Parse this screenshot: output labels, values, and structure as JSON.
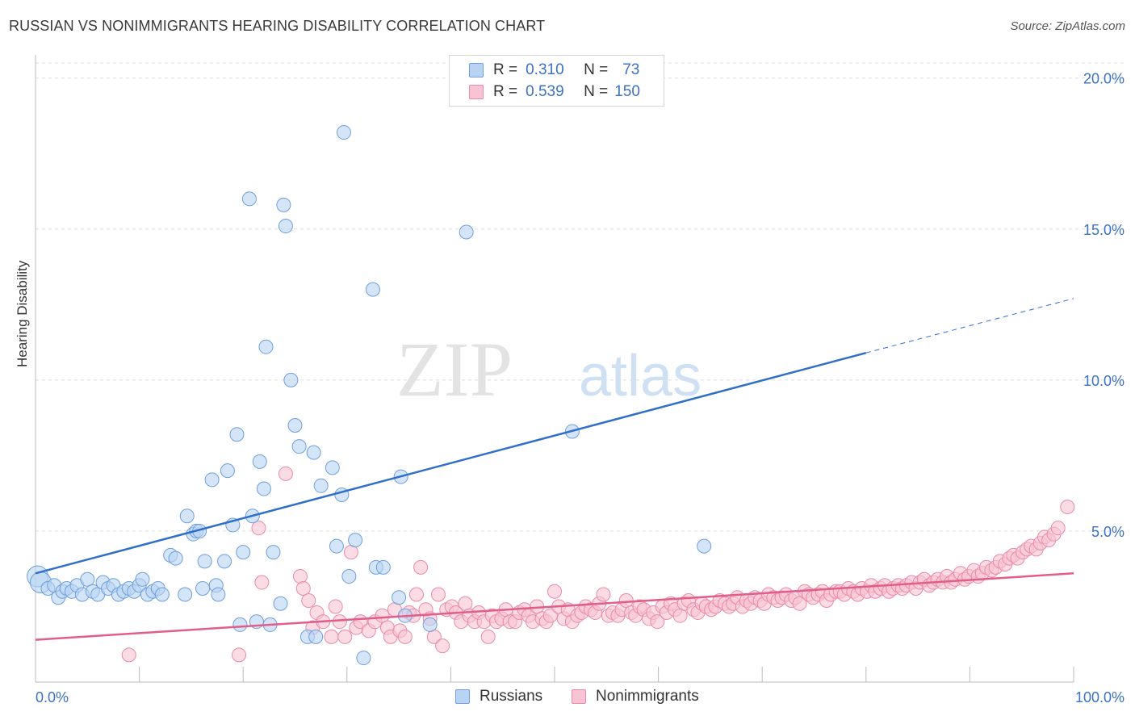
{
  "title": "RUSSIAN VS NONIMMIGRANTS HEARING DISABILITY CORRELATION CHART",
  "source": "Source: ZipAtlas.com",
  "watermark": {
    "zip": "ZIP",
    "atlas": "atlas"
  },
  "legend": {
    "russians": {
      "r_label": "R =",
      "r": "0.310",
      "n_label": "N =",
      "n": "73"
    },
    "nonimmigrants": {
      "r_label": "R =",
      "r": "0.539",
      "n_label": "N =",
      "n": "150"
    }
  },
  "colors": {
    "russians_fill": "#b9d3f3",
    "russians_stroke": "#6f9fdc",
    "russians_line": "#2f6fcc",
    "nonimmigrants_fill": "#f8c3d2",
    "nonimmigrants_stroke": "#ea8aa8",
    "nonimmigrants_line": "#e25d8a",
    "tick_label": "#3b72c4",
    "grid": "#dddddd"
  },
  "chart_data": {
    "type": "scatter",
    "title": "RUSSIAN VS NONIMMIGRANTS HEARING DISABILITY CORRELATION CHART",
    "xlabel": "",
    "ylabel": "Hearing Disability",
    "xlim": [
      0,
      100
    ],
    "ylim": [
      0,
      20.5
    ],
    "x_tick_labels": [
      "0.0%",
      "100.0%"
    ],
    "y_ticks": [
      5,
      10,
      15,
      20
    ],
    "y_tick_labels": [
      "5.0%",
      "10.0%",
      "15.0%",
      "20.0%"
    ],
    "grid": true,
    "legend_position": "top-center",
    "series": [
      {
        "name": "Russians",
        "trendline": {
          "x0": 0,
          "y0": 3.6,
          "x1": 80,
          "y1": 10.9,
          "dashed_to_x": 100,
          "dashed_to_y": 12.7
        },
        "points": [
          [
            0.2,
            3.5
          ],
          [
            0.5,
            3.3
          ],
          [
            1.2,
            3.1
          ],
          [
            1.8,
            3.2
          ],
          [
            2.2,
            2.8
          ],
          [
            2.6,
            3.0
          ],
          [
            3.0,
            3.1
          ],
          [
            3.5,
            3.0
          ],
          [
            4.0,
            3.2
          ],
          [
            4.5,
            2.9
          ],
          [
            5.0,
            3.4
          ],
          [
            5.5,
            3.0
          ],
          [
            6.0,
            2.9
          ],
          [
            6.5,
            3.3
          ],
          [
            7.0,
            3.1
          ],
          [
            7.5,
            3.2
          ],
          [
            8.0,
            2.9
          ],
          [
            8.5,
            3.0
          ],
          [
            9.0,
            3.1
          ],
          [
            9.5,
            3.0
          ],
          [
            10.0,
            3.2
          ],
          [
            10.3,
            3.4
          ],
          [
            10.8,
            2.9
          ],
          [
            11.3,
            3.0
          ],
          [
            11.8,
            3.1
          ],
          [
            12.2,
            2.9
          ],
          [
            13.0,
            4.2
          ],
          [
            13.5,
            4.1
          ],
          [
            14.4,
            2.9
          ],
          [
            14.6,
            5.5
          ],
          [
            15.2,
            4.9
          ],
          [
            15.5,
            5.0
          ],
          [
            15.8,
            5.0
          ],
          [
            16.1,
            3.1
          ],
          [
            16.3,
            4.0
          ],
          [
            17.0,
            6.7
          ],
          [
            17.4,
            3.2
          ],
          [
            17.6,
            2.9
          ],
          [
            18.2,
            4.0
          ],
          [
            18.5,
            7.0
          ],
          [
            19.0,
            5.2
          ],
          [
            19.4,
            8.2
          ],
          [
            19.7,
            1.9
          ],
          [
            20.0,
            4.3
          ],
          [
            20.6,
            16.0
          ],
          [
            20.9,
            5.5
          ],
          [
            21.3,
            2.0
          ],
          [
            21.6,
            7.3
          ],
          [
            22.0,
            6.4
          ],
          [
            22.2,
            11.1
          ],
          [
            22.6,
            1.9
          ],
          [
            22.9,
            4.3
          ],
          [
            23.6,
            2.6
          ],
          [
            23.9,
            15.8
          ],
          [
            24.1,
            15.1
          ],
          [
            24.6,
            10.0
          ],
          [
            25.0,
            8.5
          ],
          [
            25.4,
            7.8
          ],
          [
            26.2,
            1.5
          ],
          [
            26.8,
            7.6
          ],
          [
            27.0,
            1.5
          ],
          [
            27.5,
            6.5
          ],
          [
            28.6,
            7.1
          ],
          [
            29.0,
            4.5
          ],
          [
            29.5,
            6.2
          ],
          [
            29.7,
            18.2
          ],
          [
            30.2,
            3.5
          ],
          [
            30.8,
            4.7
          ],
          [
            31.6,
            0.8
          ],
          [
            32.5,
            13.0
          ],
          [
            32.8,
            3.8
          ],
          [
            33.5,
            3.8
          ],
          [
            35.0,
            2.8
          ],
          [
            35.2,
            6.8
          ],
          [
            35.6,
            2.2
          ],
          [
            38.0,
            1.9
          ],
          [
            41.5,
            14.9
          ],
          [
            51.7,
            8.3
          ],
          [
            64.4,
            4.5
          ]
        ]
      },
      {
        "name": "Nonimmigrants",
        "trendline": {
          "x0": 0,
          "y0": 1.4,
          "x1": 100,
          "y1": 3.6
        },
        "points": [
          [
            9.0,
            0.9
          ],
          [
            19.6,
            0.9
          ],
          [
            21.5,
            5.1
          ],
          [
            21.8,
            3.3
          ],
          [
            24.1,
            6.9
          ],
          [
            25.5,
            3.5
          ],
          [
            25.8,
            3.1
          ],
          [
            26.3,
            2.7
          ],
          [
            26.7,
            1.8
          ],
          [
            27.1,
            2.3
          ],
          [
            27.7,
            2.0
          ],
          [
            28.5,
            1.5
          ],
          [
            28.9,
            2.5
          ],
          [
            29.3,
            2.0
          ],
          [
            29.8,
            1.5
          ],
          [
            30.4,
            4.3
          ],
          [
            30.9,
            1.8
          ],
          [
            31.3,
            2.0
          ],
          [
            32.1,
            1.7
          ],
          [
            32.7,
            2.0
          ],
          [
            33.4,
            2.2
          ],
          [
            33.9,
            1.8
          ],
          [
            34.2,
            1.5
          ],
          [
            34.6,
            2.4
          ],
          [
            35.1,
            1.7
          ],
          [
            35.6,
            1.5
          ],
          [
            36.0,
            2.3
          ],
          [
            36.4,
            2.2
          ],
          [
            36.7,
            2.9
          ],
          [
            37.1,
            3.8
          ],
          [
            37.6,
            2.4
          ],
          [
            38.0,
            2.1
          ],
          [
            38.4,
            1.5
          ],
          [
            38.8,
            2.9
          ],
          [
            39.2,
            1.2
          ],
          [
            39.6,
            2.4
          ],
          [
            40.1,
            2.5
          ],
          [
            40.5,
            2.3
          ],
          [
            41.0,
            2.0
          ],
          [
            41.4,
            2.6
          ],
          [
            41.8,
            2.2
          ],
          [
            42.3,
            2.0
          ],
          [
            42.7,
            2.3
          ],
          [
            43.2,
            2.0
          ],
          [
            43.6,
            1.5
          ],
          [
            44.0,
            2.2
          ],
          [
            44.4,
            2.0
          ],
          [
            44.9,
            2.1
          ],
          [
            45.3,
            2.4
          ],
          [
            45.7,
            2.0
          ],
          [
            46.2,
            2.0
          ],
          [
            46.6,
            2.3
          ],
          [
            47.1,
            2.4
          ],
          [
            47.5,
            2.2
          ],
          [
            47.9,
            2.0
          ],
          [
            48.3,
            2.5
          ],
          [
            48.8,
            2.1
          ],
          [
            49.2,
            2.0
          ],
          [
            49.6,
            2.2
          ],
          [
            50.0,
            3.0
          ],
          [
            50.4,
            2.5
          ],
          [
            50.9,
            2.1
          ],
          [
            51.3,
            2.4
          ],
          [
            51.7,
            2.0
          ],
          [
            52.2,
            2.2
          ],
          [
            52.6,
            2.3
          ],
          [
            53.0,
            2.5
          ],
          [
            53.5,
            2.4
          ],
          [
            53.9,
            2.3
          ],
          [
            54.3,
            2.6
          ],
          [
            54.7,
            2.9
          ],
          [
            55.2,
            2.2
          ],
          [
            55.6,
            2.3
          ],
          [
            56.1,
            2.2
          ],
          [
            56.5,
            2.4
          ],
          [
            56.9,
            2.7
          ],
          [
            57.4,
            2.3
          ],
          [
            57.8,
            2.2
          ],
          [
            58.2,
            2.5
          ],
          [
            58.6,
            2.4
          ],
          [
            59.1,
            2.1
          ],
          [
            59.5,
            2.3
          ],
          [
            59.9,
            2.0
          ],
          [
            60.4,
            2.5
          ],
          [
            60.8,
            2.3
          ],
          [
            61.2,
            2.6
          ],
          [
            61.6,
            2.4
          ],
          [
            62.1,
            2.2
          ],
          [
            62.5,
            2.6
          ],
          [
            62.9,
            2.7
          ],
          [
            63.4,
            2.4
          ],
          [
            63.8,
            2.3
          ],
          [
            64.2,
            2.6
          ],
          [
            64.6,
            2.5
          ],
          [
            65.1,
            2.4
          ],
          [
            65.5,
            2.5
          ],
          [
            65.9,
            2.7
          ],
          [
            66.4,
            2.6
          ],
          [
            66.8,
            2.5
          ],
          [
            67.2,
            2.6
          ],
          [
            67.6,
            2.8
          ],
          [
            68.1,
            2.5
          ],
          [
            68.5,
            2.7
          ],
          [
            68.9,
            2.6
          ],
          [
            69.3,
            2.8
          ],
          [
            69.8,
            2.7
          ],
          [
            70.2,
            2.6
          ],
          [
            70.6,
            2.9
          ],
          [
            71.1,
            2.8
          ],
          [
            71.5,
            2.7
          ],
          [
            71.9,
            2.8
          ],
          [
            72.3,
            2.9
          ],
          [
            72.8,
            2.7
          ],
          [
            73.2,
            2.8
          ],
          [
            73.6,
            2.6
          ],
          [
            74.1,
            3.0
          ],
          [
            74.5,
            2.9
          ],
          [
            74.9,
            2.8
          ],
          [
            75.4,
            2.9
          ],
          [
            75.8,
            3.0
          ],
          [
            76.2,
            2.7
          ],
          [
            76.6,
            2.9
          ],
          [
            77.1,
            3.0
          ],
          [
            77.5,
            3.0
          ],
          [
            77.9,
            2.9
          ],
          [
            78.3,
            3.1
          ],
          [
            78.8,
            3.0
          ],
          [
            79.2,
            2.9
          ],
          [
            79.6,
            3.1
          ],
          [
            80.1,
            3.0
          ],
          [
            80.5,
            3.2
          ],
          [
            80.9,
            3.0
          ],
          [
            81.4,
            3.1
          ],
          [
            81.8,
            3.2
          ],
          [
            82.2,
            3.0
          ],
          [
            82.6,
            3.1
          ],
          [
            83.1,
            3.2
          ],
          [
            83.5,
            3.1
          ],
          [
            83.9,
            3.2
          ],
          [
            84.4,
            3.3
          ],
          [
            84.8,
            3.1
          ],
          [
            85.2,
            3.3
          ],
          [
            85.6,
            3.4
          ],
          [
            86.1,
            3.2
          ],
          [
            86.5,
            3.3
          ],
          [
            86.9,
            3.4
          ],
          [
            87.4,
            3.3
          ],
          [
            87.8,
            3.5
          ],
          [
            88.2,
            3.3
          ],
          [
            88.6,
            3.4
          ],
          [
            89.1,
            3.6
          ],
          [
            89.5,
            3.4
          ],
          [
            89.9,
            3.5
          ],
          [
            90.4,
            3.7
          ],
          [
            90.8,
            3.5
          ],
          [
            91.2,
            3.6
          ],
          [
            91.6,
            3.8
          ],
          [
            92.1,
            3.7
          ],
          [
            92.5,
            3.8
          ],
          [
            92.9,
            4.0
          ],
          [
            93.4,
            3.9
          ],
          [
            93.8,
            4.1
          ],
          [
            94.2,
            4.2
          ],
          [
            94.6,
            4.1
          ],
          [
            95.1,
            4.3
          ],
          [
            95.5,
            4.4
          ],
          [
            95.9,
            4.5
          ],
          [
            96.4,
            4.4
          ],
          [
            96.8,
            4.6
          ],
          [
            97.2,
            4.8
          ],
          [
            97.6,
            4.7
          ],
          [
            98.1,
            4.9
          ],
          [
            98.5,
            5.1
          ],
          [
            99.4,
            5.8
          ]
        ]
      }
    ]
  },
  "legend_bottom": {
    "russians": "Russians",
    "nonimmigrants": "Nonimmigrants"
  }
}
